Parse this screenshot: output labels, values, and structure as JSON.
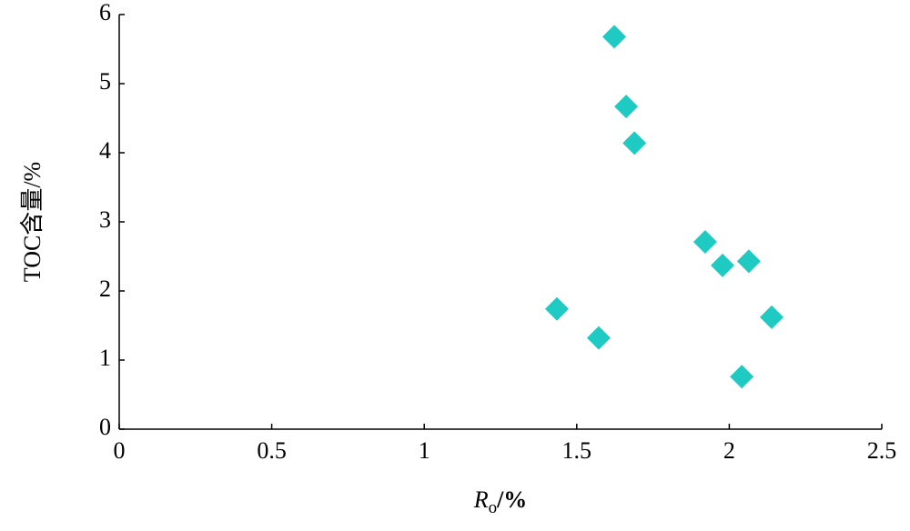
{
  "chart_data": {
    "type": "scatter",
    "xlabel": {
      "symbol": "R",
      "subscript": "o",
      "unit": "/%"
    },
    "ylabel": "TOC含量/%",
    "x": [
      1.623,
      1.662,
      1.689,
      1.435,
      1.572,
      1.921,
      1.978,
      2.064,
      2.139,
      2.041
    ],
    "values": [
      5.68,
      4.67,
      4.14,
      1.74,
      1.32,
      2.71,
      2.37,
      2.43,
      1.62,
      0.76
    ],
    "color": "#1fcac3",
    "xlim": [
      0,
      2.5
    ],
    "xticks": [
      0,
      0.5,
      1,
      1.5,
      2,
      2.5
    ],
    "ylim": [
      0,
      6
    ],
    "yticks": [
      0,
      1,
      2,
      3,
      4,
      5,
      6
    ],
    "grid": false
  }
}
